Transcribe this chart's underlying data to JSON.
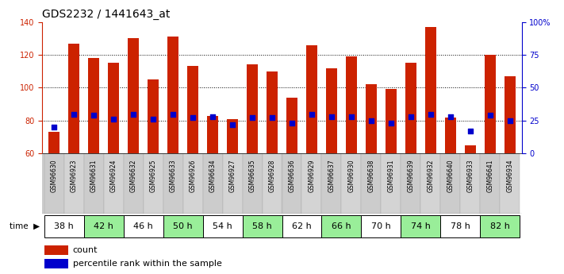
{
  "title": "GDS2232 / 1441643_at",
  "samples": [
    "GSM96630",
    "GSM96923",
    "GSM96631",
    "GSM96924",
    "GSM96632",
    "GSM96925",
    "GSM96633",
    "GSM96926",
    "GSM96634",
    "GSM96927",
    "GSM96635",
    "GSM96928",
    "GSM96636",
    "GSM96929",
    "GSM96637",
    "GSM96930",
    "GSM96638",
    "GSM96931",
    "GSM96639",
    "GSM96932",
    "GSM96640",
    "GSM96933",
    "GSM96641",
    "GSM96934"
  ],
  "counts": [
    73,
    127,
    118,
    115,
    130,
    105,
    131,
    113,
    83,
    81,
    114,
    110,
    94,
    126,
    112,
    119,
    102,
    99,
    115,
    137,
    82,
    65,
    120,
    107
  ],
  "percentile": [
    20,
    30,
    29,
    26,
    30,
    26,
    30,
    27,
    28,
    22,
    27,
    27,
    23,
    30,
    28,
    28,
    25,
    23,
    28,
    30,
    28,
    17,
    29,
    25
  ],
  "time_groups": [
    {
      "label": "38 h",
      "start": 0,
      "end": 2,
      "color": "#ffffff"
    },
    {
      "label": "42 h",
      "start": 2,
      "end": 4,
      "color": "#99ee99"
    },
    {
      "label": "46 h",
      "start": 4,
      "end": 6,
      "color": "#ffffff"
    },
    {
      "label": "50 h",
      "start": 6,
      "end": 8,
      "color": "#99ee99"
    },
    {
      "label": "54 h",
      "start": 8,
      "end": 10,
      "color": "#ffffff"
    },
    {
      "label": "58 h",
      "start": 10,
      "end": 12,
      "color": "#99ee99"
    },
    {
      "label": "62 h",
      "start": 12,
      "end": 14,
      "color": "#ffffff"
    },
    {
      "label": "66 h",
      "start": 14,
      "end": 16,
      "color": "#99ee99"
    },
    {
      "label": "70 h",
      "start": 16,
      "end": 18,
      "color": "#ffffff"
    },
    {
      "label": "74 h",
      "start": 18,
      "end": 20,
      "color": "#99ee99"
    },
    {
      "label": "78 h",
      "start": 20,
      "end": 22,
      "color": "#ffffff"
    },
    {
      "label": "82 h",
      "start": 22,
      "end": 24,
      "color": "#99ee99"
    }
  ],
  "bar_color": "#cc2200",
  "percentile_color": "#0000cc",
  "left_axis_color": "#cc2200",
  "right_axis_color": "#0000cc",
  "ylim_left": [
    60,
    140
  ],
  "ylim_right": [
    0,
    100
  ],
  "yticks_left": [
    60,
    80,
    100,
    120,
    140
  ],
  "yticks_right": [
    0,
    25,
    50,
    75,
    100
  ],
  "ytick_labels_right": [
    "0",
    "25",
    "50",
    "75",
    "100%"
  ],
  "grid_values": [
    80,
    100,
    120
  ],
  "bar_width": 0.55,
  "legend_count": "count",
  "legend_pct": "percentile rank within the sample",
  "sample_bg": "#cccccc",
  "title_fontsize": 10,
  "tick_fontsize": 7,
  "label_fontsize": 8
}
